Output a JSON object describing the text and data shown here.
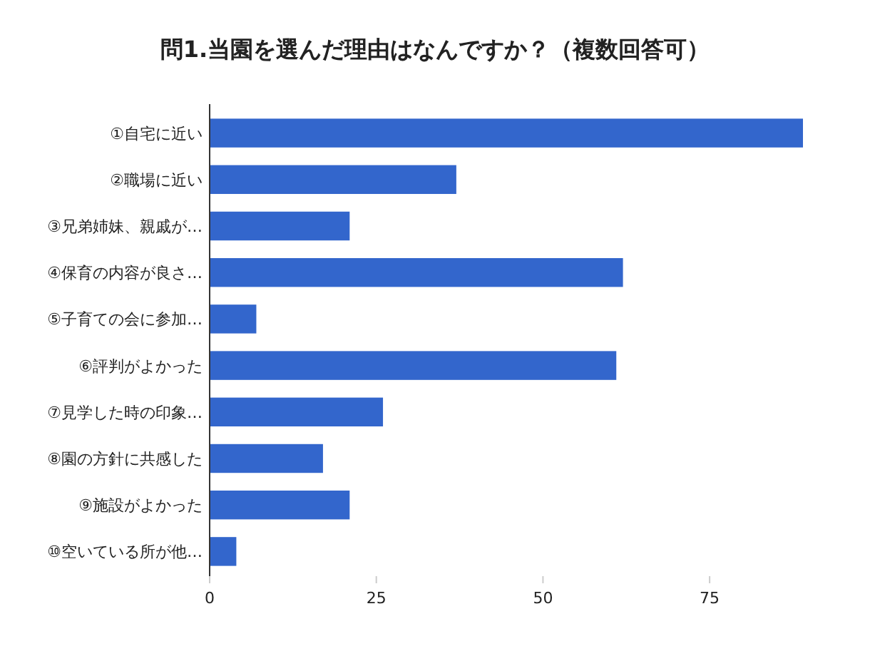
{
  "chart_data": {
    "type": "bar",
    "orientation": "horizontal",
    "title": "問1.当園を選んだ理由はなんですか？（複数回答可）",
    "categories": [
      "①自宅に近い",
      "②職場に近い",
      "③兄弟姉妹、親戚が…",
      "④保育の内容が良さ…",
      "⑤子育ての会に参加…",
      "⑥評判がよかった",
      "⑦見学した時の印象…",
      "⑧園の方針に共感した",
      "⑨施設がよかった",
      "⑩空いている所が他…"
    ],
    "values": [
      89,
      37,
      21,
      62,
      7,
      61,
      26,
      17,
      21,
      4
    ],
    "color": "#3366cc",
    "xlim": [
      0,
      89
    ],
    "xticks": [
      0,
      25,
      50,
      75
    ],
    "grid": false
  }
}
